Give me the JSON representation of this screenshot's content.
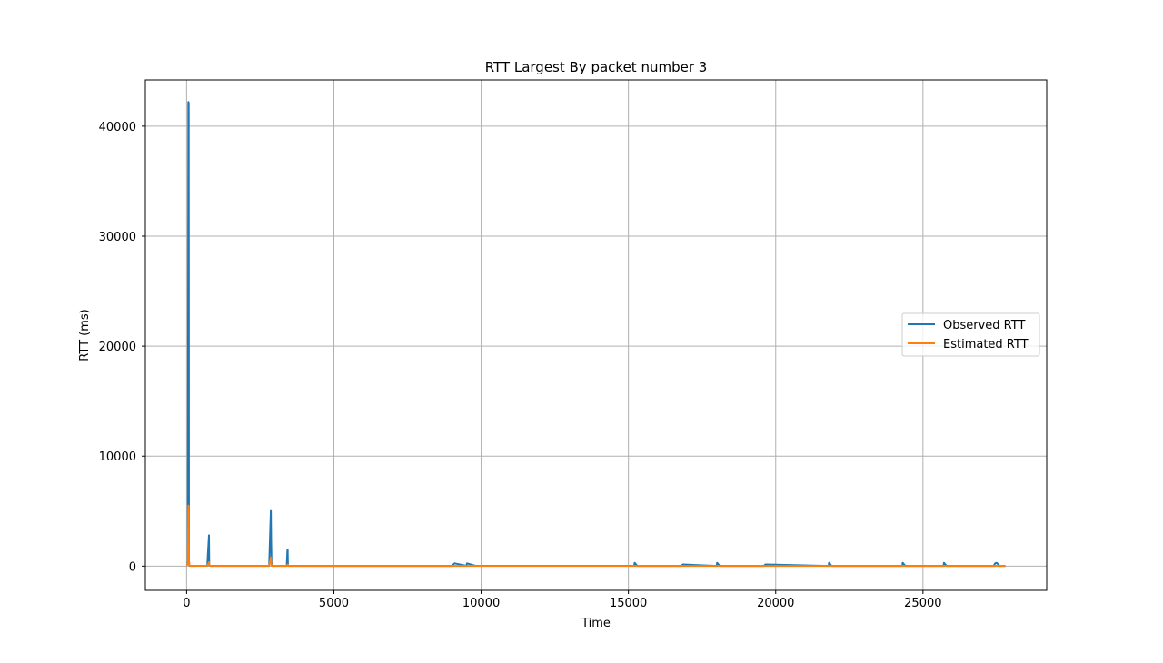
{
  "chart_data": {
    "type": "line",
    "title": "RTT  Largest By packet number 3",
    "xlabel": "Time",
    "ylabel": "RTT (ms)",
    "xlim": [
      -1400,
      29200
    ],
    "ylim": [
      -2200,
      44200
    ],
    "xticks": [
      0,
      5000,
      10000,
      15000,
      20000,
      25000
    ],
    "yticks": [
      0,
      10000,
      20000,
      30000,
      40000
    ],
    "grid": true,
    "legend": {
      "position": "center-right"
    },
    "series": [
      {
        "name": "Observed RTT",
        "color": "#1f77b4",
        "x": [
          0,
          40,
          60,
          70,
          80,
          85,
          90,
          100,
          120,
          700,
          760,
          770,
          800,
          2800,
          2860,
          2870,
          2880,
          2890,
          2900,
          3400,
          3420,
          3430,
          3440,
          3460,
          9000,
          9100,
          9500,
          9520,
          9800,
          15200,
          15210,
          15300,
          16800,
          16850,
          18000,
          18010,
          18100,
          19600,
          19650,
          21800,
          21810,
          21900,
          24300,
          24310,
          24400,
          25700,
          25710,
          25800,
          27400,
          27450,
          27500,
          27600,
          27800
        ],
        "y": [
          300,
          300,
          42200,
          42100,
          400,
          200,
          50,
          30,
          20,
          30,
          2800,
          50,
          20,
          20,
          5100,
          2500,
          600,
          100,
          20,
          20,
          1400,
          1500,
          100,
          20,
          20,
          250,
          30,
          250,
          30,
          30,
          300,
          20,
          20,
          150,
          20,
          300,
          20,
          20,
          150,
          20,
          300,
          20,
          20,
          300,
          20,
          20,
          300,
          20,
          20,
          250,
          300,
          20,
          20
        ]
      },
      {
        "name": "Estimated RTT",
        "color": "#ff7f0e",
        "x": [
          0,
          40,
          60,
          70,
          80,
          100,
          700,
          760,
          780,
          2800,
          2860,
          2880,
          2900,
          3400,
          3430,
          3460,
          5000,
          10000,
          15000,
          20000,
          25000,
          27800
        ],
        "y": [
          50,
          200,
          5500,
          5400,
          500,
          30,
          30,
          350,
          30,
          30,
          800,
          100,
          30,
          30,
          150,
          30,
          20,
          20,
          20,
          20,
          20,
          20
        ]
      }
    ]
  }
}
